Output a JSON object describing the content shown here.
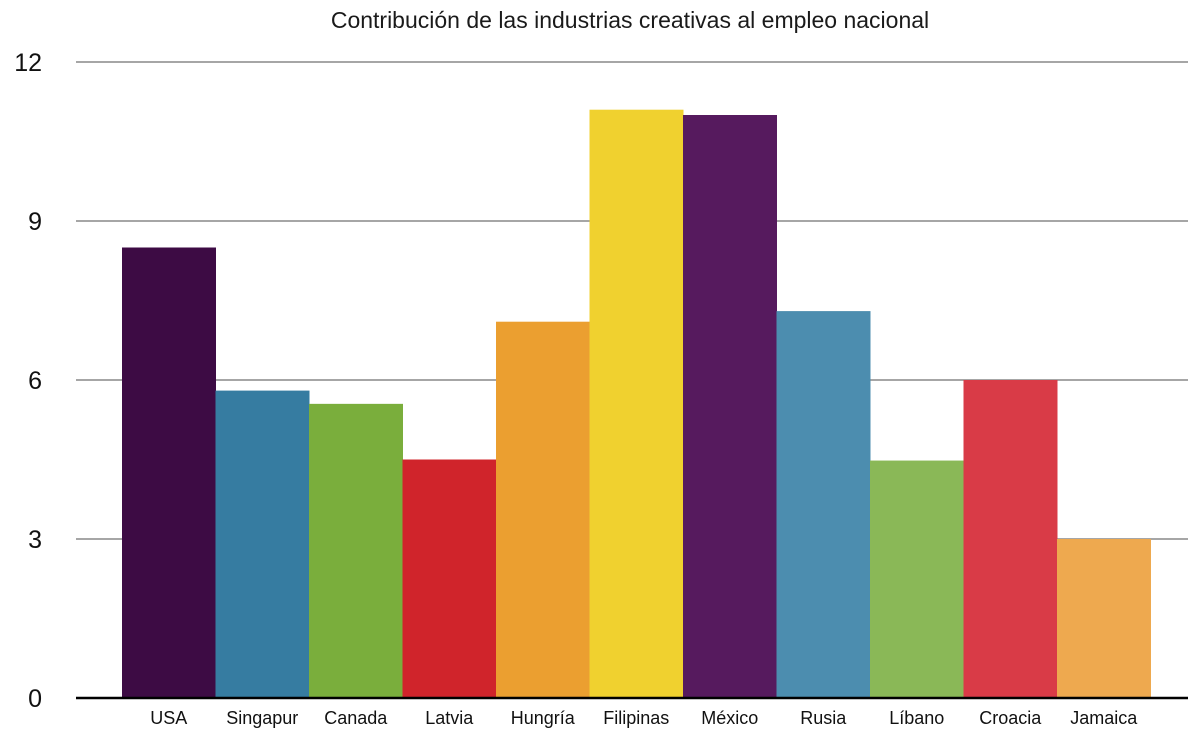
{
  "chart_data": {
    "type": "bar",
    "title": "Contribución de las industrias creativas al empleo nacional",
    "xlabel": "",
    "ylabel": "",
    "ylim": [
      0,
      12
    ],
    "yticks": [
      0,
      3,
      6,
      9,
      12
    ],
    "grid": true,
    "categories": [
      "USA",
      "Singapur",
      "Canada",
      "Latvia",
      "Hungría",
      "Filipinas",
      "México",
      "Rusia",
      "Líbano",
      "Croacia",
      "Jamaica"
    ],
    "values": [
      8.5,
      5.8,
      5.55,
      4.5,
      7.1,
      11.1,
      11.0,
      7.3,
      4.48,
      6.0,
      3.0
    ],
    "colors": [
      "#3d0b44",
      "#367ca1",
      "#7aae3c",
      "#d0242b",
      "#eb9f30",
      "#f0d12f",
      "#561a5e",
      "#4c8daf",
      "#8ab857",
      "#d93b47",
      "#eea94f"
    ]
  }
}
